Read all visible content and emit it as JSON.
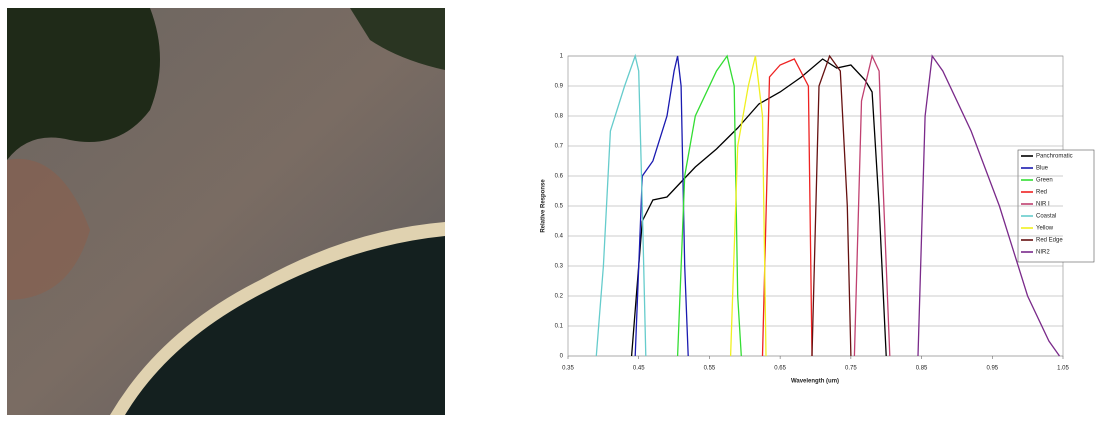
{
  "chart_data": {
    "type": "line",
    "x_label": "Wavelength (um)",
    "y_label": "Relative Response",
    "xlim": [
      0.35,
      1.05
    ],
    "xticks": [
      0.35,
      0.45,
      0.55,
      0.65,
      0.75,
      0.85,
      0.95,
      1.05
    ],
    "ylim": [
      0,
      1
    ],
    "yticks": [
      0,
      0.1,
      0.2,
      0.3,
      0.4,
      0.5,
      0.6,
      0.7,
      0.8,
      0.9,
      1
    ],
    "grid": true,
    "legend": "right",
    "series": [
      {
        "name": "Panchromatic",
        "color": "#000000",
        "x": [
          0.44,
          0.45,
          0.455,
          0.47,
          0.49,
          0.51,
          0.53,
          0.56,
          0.59,
          0.62,
          0.65,
          0.68,
          0.71,
          0.73,
          0.75,
          0.77,
          0.78,
          0.79,
          0.8
        ],
        "values": [
          0,
          0.3,
          0.45,
          0.52,
          0.53,
          0.58,
          0.63,
          0.69,
          0.76,
          0.84,
          0.88,
          0.93,
          0.99,
          0.96,
          0.97,
          0.92,
          0.88,
          0.5,
          0
        ]
      },
      {
        "name": "Blue",
        "color": "#1a1ab0",
        "x": [
          0.445,
          0.455,
          0.47,
          0.49,
          0.5,
          0.505,
          0.51,
          0.515,
          0.52
        ],
        "values": [
          0,
          0.6,
          0.65,
          0.8,
          0.95,
          1.0,
          0.9,
          0.3,
          0
        ]
      },
      {
        "name": "Green",
        "color": "#33dd33",
        "x": [
          0.505,
          0.515,
          0.53,
          0.56,
          0.575,
          0.585,
          0.59,
          0.595
        ],
        "values": [
          0,
          0.6,
          0.8,
          0.95,
          1.0,
          0.9,
          0.2,
          0
        ]
      },
      {
        "name": "Red",
        "color": "#ee2222",
        "x": [
          0.625,
          0.635,
          0.65,
          0.67,
          0.69,
          0.695
        ],
        "values": [
          0,
          0.93,
          0.97,
          0.99,
          0.9,
          0
        ]
      },
      {
        "name": "NIR I",
        "color": "#c04070",
        "x": [
          0.755,
          0.765,
          0.78,
          0.79,
          0.795,
          0.805
        ],
        "values": [
          0,
          0.85,
          1.0,
          0.95,
          0.6,
          0
        ]
      },
      {
        "name": "Coastal",
        "color": "#66cccc",
        "x": [
          0.39,
          0.4,
          0.41,
          0.43,
          0.445,
          0.45,
          0.455,
          0.46
        ],
        "values": [
          0,
          0.3,
          0.75,
          0.9,
          1.0,
          0.95,
          0.5,
          0
        ]
      },
      {
        "name": "Yellow",
        "color": "#f0f020",
        "x": [
          0.58,
          0.59,
          0.605,
          0.615,
          0.625,
          0.63
        ],
        "values": [
          0,
          0.7,
          0.9,
          1.0,
          0.8,
          0
        ]
      },
      {
        "name": "Red Edge",
        "color": "#661111",
        "x": [
          0.695,
          0.705,
          0.72,
          0.735,
          0.745,
          0.75
        ],
        "values": [
          0,
          0.9,
          1.0,
          0.95,
          0.5,
          0
        ]
      },
      {
        "name": "NIR2",
        "color": "#7a2a8a",
        "x": [
          0.845,
          0.855,
          0.865,
          0.88,
          0.92,
          0.96,
          1.0,
          1.03,
          1.045
        ],
        "values": [
          0,
          0.8,
          1.0,
          0.95,
          0.75,
          0.5,
          0.2,
          0.05,
          0
        ]
      }
    ]
  }
}
